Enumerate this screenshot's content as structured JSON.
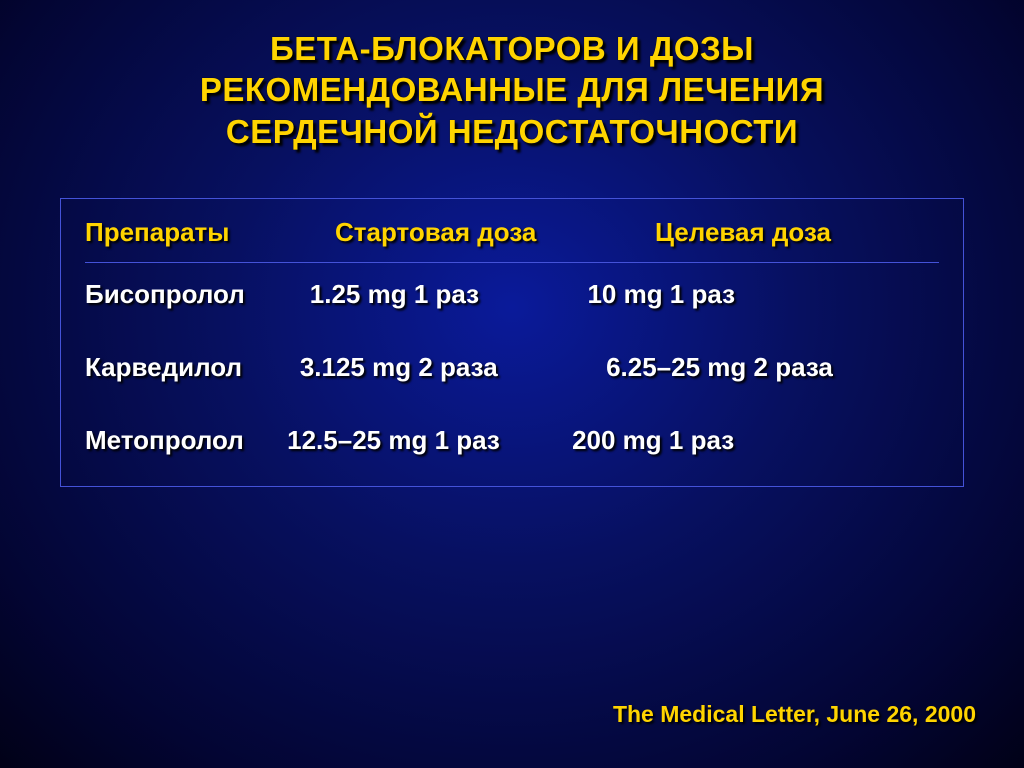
{
  "colors": {
    "accent": "#ffd400",
    "text": "#ffffff",
    "border": "#4452d8",
    "bg_center": "#0a1a9a",
    "bg_edge": "#010117"
  },
  "title_lines": [
    "БЕТА-БЛОКАТОРОВ И ДОЗЫ",
    "РЕКОМЕНДОВАННЫЕ ДЛЯ ЛЕЧЕНИЯ",
    "СЕРДЕЧНОЙ НЕДОСТАТОЧНОСТИ"
  ],
  "table": {
    "headers": {
      "drug": "Препараты",
      "start": "Стартовая доза",
      "target": "Целевая доза"
    },
    "rows": [
      {
        "drug": "Бисопролол",
        "start": "1.25 mg 1 раз",
        "target": "10 mg 1 раз",
        "text": "Бисопролол         1.25 mg 1 раз               10 mg 1 раз"
      },
      {
        "drug": "Карведилол",
        "start": "3.125 mg 2 раза",
        "target": "6.25–25 mg 2 раза",
        "text": "Карведилол        3.125 mg 2 раза               6.25–25 mg 2 раза"
      },
      {
        "drug": "Метопролол",
        "start": "12.5–25 mg 1 раз",
        "target": "200 mg 1 раз",
        "text": "Метопролол      12.5–25 mg 1 раз          200 mg 1 раз"
      }
    ]
  },
  "source": "The Medical Letter, June 26, 2000"
}
